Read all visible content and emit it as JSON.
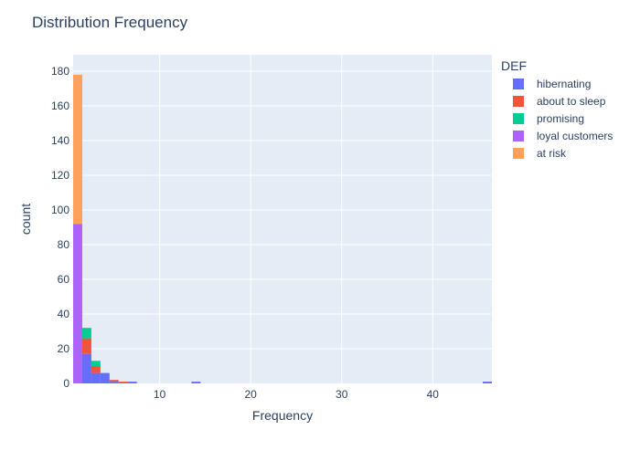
{
  "chart_data": {
    "type": "bar",
    "title": "Distribution Frequency",
    "xlabel": "Frequency",
    "ylabel": "count",
    "xlim": [
      0.5,
      46.5
    ],
    "ylim": [
      0,
      189.5
    ],
    "bin_width": 1,
    "barmode": "stack",
    "x_ticks": [
      10,
      20,
      30,
      40
    ],
    "y_ticks": [
      0,
      20,
      40,
      60,
      80,
      100,
      120,
      140,
      160,
      180
    ],
    "grid": true,
    "legend": {
      "title": "DEF",
      "position": "right",
      "items": [
        {
          "label": "hibernating",
          "color": "#636efa"
        },
        {
          "label": "about to sleep",
          "color": "#ef553b"
        },
        {
          "label": "promising",
          "color": "#00cc96"
        },
        {
          "label": "loyal customers",
          "color": "#ab63fa"
        },
        {
          "label": "at risk",
          "color": "#ffa15a"
        }
      ]
    },
    "series": [
      {
        "name": "hibernating",
        "color": "#636efa",
        "points": [
          {
            "x": 2,
            "y": 17
          },
          {
            "x": 3,
            "y": 6
          },
          {
            "x": 4,
            "y": 6
          },
          {
            "x": 5,
            "y": 1
          },
          {
            "x": 7,
            "y": 1
          },
          {
            "x": 14,
            "y": 1
          },
          {
            "x": 46,
            "y": 1
          }
        ]
      },
      {
        "name": "about to sleep",
        "color": "#ef553b",
        "points": [
          {
            "x": 2,
            "y": 9
          },
          {
            "x": 3,
            "y": 4
          },
          {
            "x": 5,
            "y": 1
          },
          {
            "x": 6,
            "y": 1
          }
        ]
      },
      {
        "name": "promising",
        "color": "#00cc96",
        "points": [
          {
            "x": 2,
            "y": 6
          },
          {
            "x": 3,
            "y": 3
          }
        ]
      },
      {
        "name": "loyal customers",
        "color": "#ab63fa",
        "points": [
          {
            "x": 1,
            "y": 92
          }
        ]
      },
      {
        "name": "at risk",
        "color": "#ffa15a",
        "points": [
          {
            "x": 1,
            "y": 86
          }
        ]
      }
    ]
  }
}
